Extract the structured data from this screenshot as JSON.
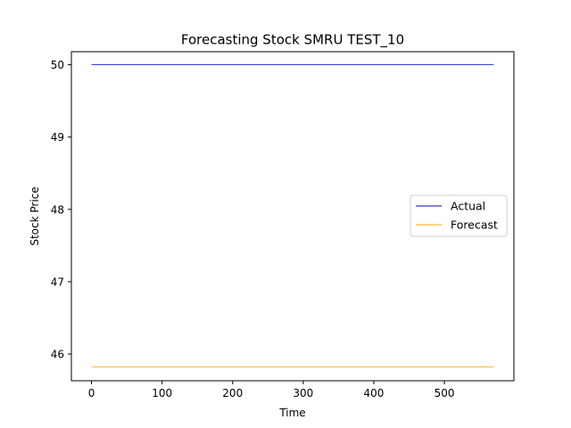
{
  "chart_data": {
    "type": "line",
    "title": "Forecasting Stock SMRU TEST_10",
    "xlabel": "Time",
    "ylabel": "Stock Price",
    "xlim": [
      -28.5,
      598.5
    ],
    "ylim": [
      45.63,
      50.18
    ],
    "xticks": [
      0,
      100,
      200,
      300,
      400,
      500
    ],
    "yticks": [
      46,
      47,
      48,
      49,
      50
    ],
    "grid": false,
    "legend_position": "center-right",
    "series": [
      {
        "name": "Actual",
        "color": "#0000cd",
        "x": [
          0,
          570
        ],
        "y": [
          50.0,
          50.0
        ]
      },
      {
        "name": "Forecast",
        "color": "#ffa500",
        "x": [
          0,
          570
        ],
        "y": [
          45.82,
          45.82
        ]
      }
    ]
  }
}
